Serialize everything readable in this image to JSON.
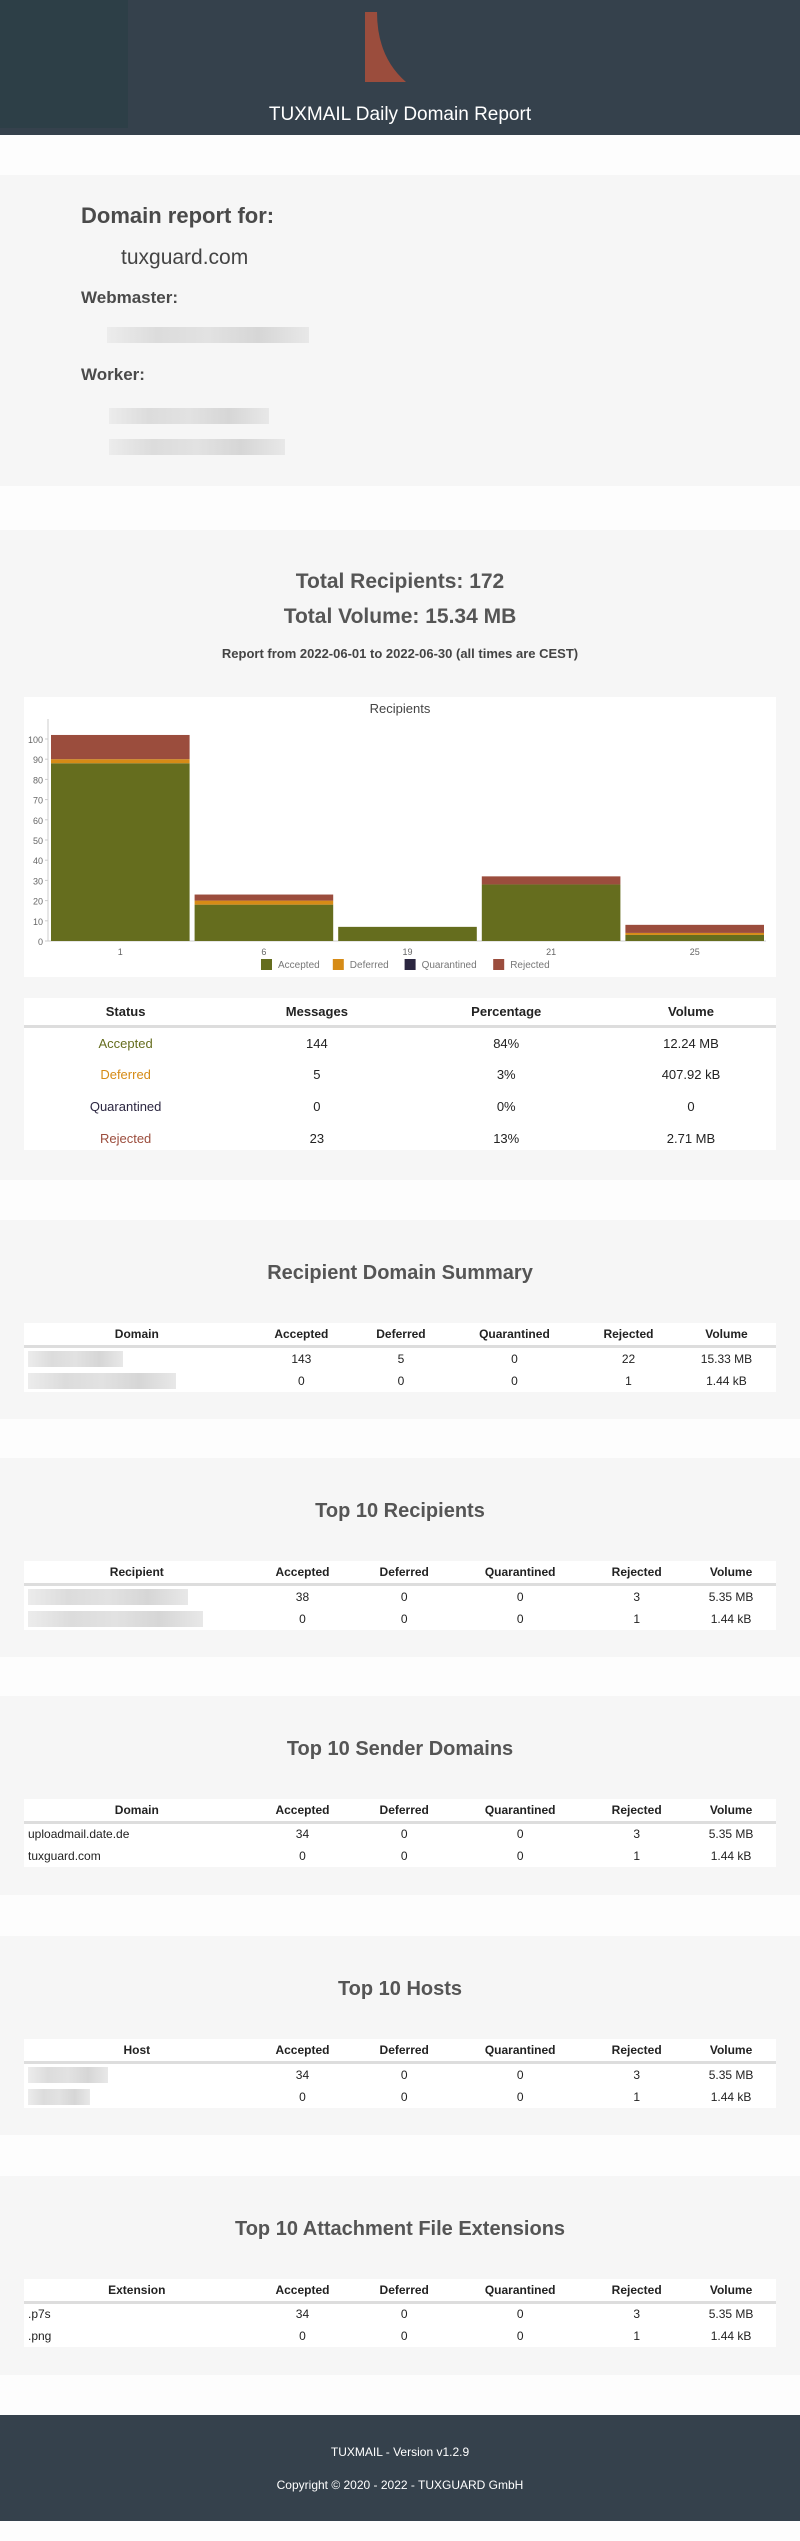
{
  "header": {
    "title": "TUXMAIL Daily Domain Report"
  },
  "info": {
    "domain_label": "Domain report for:",
    "domain": "tuxguard.com",
    "webmaster_label": "Webmaster:",
    "worker_label": "Worker:"
  },
  "summary": {
    "total_recipients": "Total Recipients: 172",
    "total_volume": "Total Volume: 15.34 MB",
    "period": "Report from 2022-06-01 to 2022-06-30 (all times are CEST)"
  },
  "colors": {
    "Accepted": "#656d1e",
    "Deferred": "#d68b16",
    "Quarantined": "#2b2640",
    "Rejected": "#9b4d3d"
  },
  "chart_data": {
    "type": "bar",
    "stacked": true,
    "title": "Recipients",
    "grid": false,
    "legend": "bottom",
    "categories": [
      "1",
      "6",
      "19",
      "21",
      "25"
    ],
    "ylim": [
      0,
      100
    ],
    "yticks": [
      0,
      10,
      20,
      30,
      40,
      50,
      60,
      70,
      80,
      90,
      100
    ],
    "series": [
      {
        "name": "Accepted",
        "values": [
          88,
          18,
          7,
          28,
          3
        ]
      },
      {
        "name": "Deferred",
        "values": [
          2,
          2,
          0,
          0,
          1
        ]
      },
      {
        "name": "Quarantined",
        "values": [
          0,
          0,
          0,
          0,
          0
        ]
      },
      {
        "name": "Rejected",
        "values": [
          12,
          3,
          0,
          4,
          4
        ]
      }
    ]
  },
  "status_table": {
    "headers": [
      "Status",
      "Messages",
      "Percentage",
      "Volume"
    ],
    "rows": [
      [
        "Accepted",
        "144",
        "84%",
        "12.24 MB"
      ],
      [
        "Deferred",
        "5",
        "3%",
        "407.92 kB"
      ],
      [
        "Quarantined",
        "0",
        "0%",
        "0"
      ],
      [
        "Rejected",
        "23",
        "13%",
        "2.71 MB"
      ]
    ]
  },
  "tables": [
    {
      "title": "Recipient Domain Summary",
      "headers": [
        "Domain",
        "Accepted",
        "Deferred",
        "Quarantined",
        "Rejected",
        "Volume"
      ],
      "rows": [
        [
          "",
          "143",
          "5",
          "0",
          "22",
          "15.33 MB"
        ],
        [
          "",
          "0",
          "0",
          "0",
          "1",
          "1.44 kB"
        ]
      ]
    },
    {
      "title": "Top 10 Recipients",
      "headers": [
        "Recipient",
        "Accepted",
        "Deferred",
        "Quarantined",
        "Rejected",
        "Volume"
      ],
      "rows": [
        [
          "",
          "38",
          "0",
          "0",
          "3",
          "5.35 MB"
        ],
        [
          "",
          "0",
          "0",
          "0",
          "1",
          "1.44 kB"
        ]
      ]
    },
    {
      "title": "Top 10 Sender Domains",
      "headers": [
        "Domain",
        "Accepted",
        "Deferred",
        "Quarantined",
        "Rejected",
        "Volume"
      ],
      "rows": [
        [
          "uploadmail.date.de",
          "34",
          "0",
          "0",
          "3",
          "5.35 MB"
        ],
        [
          "tuxguard.com",
          "0",
          "0",
          "0",
          "1",
          "1.44 kB"
        ]
      ]
    },
    {
      "title": "Top 10 Hosts",
      "headers": [
        "Host",
        "Accepted",
        "Deferred",
        "Quarantined",
        "Rejected",
        "Volume"
      ],
      "rows": [
        [
          "",
          "34",
          "0",
          "0",
          "3",
          "5.35 MB"
        ],
        [
          "",
          "0",
          "0",
          "0",
          "1",
          "1.44 kB"
        ]
      ]
    },
    {
      "title": "Top 10 Attachment File Extensions",
      "headers": [
        "Extension",
        "Accepted",
        "Deferred",
        "Quarantined",
        "Rejected",
        "Volume"
      ],
      "rows": [
        [
          ".p7s",
          "34",
          "0",
          "0",
          "3",
          "5.35 MB"
        ],
        [
          ".png",
          "0",
          "0",
          "0",
          "1",
          "1.44 kB"
        ]
      ]
    }
  ],
  "footer": {
    "version": "TUXMAIL - Version v1.2.9",
    "copyright": "Copyright © 2020 - 2022 - TUXGUARD GmbH"
  }
}
